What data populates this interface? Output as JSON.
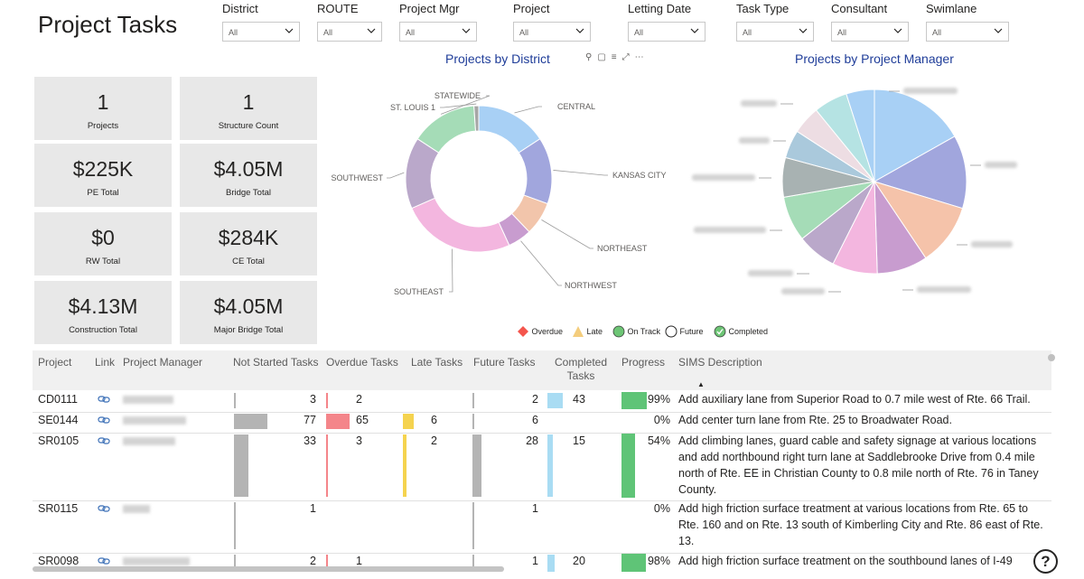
{
  "page": {
    "title": "Project Tasks"
  },
  "filters": [
    {
      "label": "District",
      "value": "All"
    },
    {
      "label": "ROUTE",
      "value": "All"
    },
    {
      "label": "Project Mgr",
      "value": "All"
    },
    {
      "label": "Project",
      "value": "All"
    },
    {
      "label": "Letting Date",
      "value": "All"
    },
    {
      "label": "Task Type",
      "value": "All"
    },
    {
      "label": "Consultant",
      "value": "All"
    },
    {
      "label": "Swimlane",
      "value": "All"
    }
  ],
  "cards": [
    {
      "value": "1",
      "caption": "Projects"
    },
    {
      "value": "1",
      "caption": "Structure Count"
    },
    {
      "value": "$225K",
      "caption": "PE Total"
    },
    {
      "value": "$4.05M",
      "caption": "Bridge Total"
    },
    {
      "value": "$0",
      "caption": "RW Total"
    },
    {
      "value": "$284K",
      "caption": "CE Total"
    },
    {
      "value": "$4.13M",
      "caption": "Construction Total"
    },
    {
      "value": "$4.05M",
      "caption": "Major Bridge Total"
    }
  ],
  "chart_data": [
    {
      "type": "pie",
      "title": "Projects by District",
      "donut": true,
      "categories": [
        "CENTRAL",
        "KANSAS CITY",
        "NORTHEAST",
        "NORTHWEST",
        "SOUTHEAST",
        "SOUTHWEST",
        "STATEWIDE",
        "ST. LOUIS 1"
      ],
      "values": [
        15,
        14,
        7,
        5,
        24,
        15,
        14,
        1
      ],
      "colors": [
        "#a8d0f5",
        "#a1a6dd",
        "#f2c5ab",
        "#c89ccf",
        "#f3b6df",
        "#baa8ca",
        "#a5dcb7",
        "#a6a6a6"
      ]
    },
    {
      "type": "pie",
      "title": "Projects by Project Manager",
      "donut": false,
      "categories": [
        "",
        "",
        "",
        "",
        "",
        "",
        "",
        "",
        "",
        "",
        "",
        ""
      ],
      "values": [
        17,
        13,
        11,
        9,
        8,
        7,
        8,
        7,
        5,
        5,
        6,
        5
      ],
      "colors": [
        "#a8d0f5",
        "#a1a6dd",
        "#f5c3aa",
        "#c89ccf",
        "#f3b6df",
        "#baa8ca",
        "#a5dcb7",
        "#a8b2b2",
        "#aac9dc",
        "#eddde3",
        "#b5e3e3",
        "#a8d0f5"
      ]
    }
  ],
  "legend": [
    {
      "label": "Overdue",
      "shape": "diamond",
      "color": "#f4554d"
    },
    {
      "label": "Late",
      "shape": "triangle",
      "color": "#f4cd7d"
    },
    {
      "label": "On Track",
      "shape": "circle",
      "color": "#6dc575"
    },
    {
      "label": "Future",
      "shape": "circle-outline",
      "color": "#252423"
    },
    {
      "label": "Completed",
      "shape": "check-circle",
      "color": "#6dc575"
    }
  ],
  "table": {
    "headers": {
      "project": "Project",
      "link": "Link",
      "manager": "Project Manager",
      "not_started": "Not Started Tasks",
      "overdue": "Overdue Tasks",
      "late": "Late Tasks",
      "future": "Future Tasks",
      "completed_1": "Completed",
      "completed_2": "Tasks",
      "progress": "Progress",
      "desc": "SIMS Description"
    },
    "sort_indicator": "▲",
    "rows": [
      {
        "project": "CD0111",
        "not_started": "3",
        "overdue": "2",
        "late": "",
        "future": "2",
        "completed": "43",
        "progress": "99%",
        "progress_value": 0.99,
        "desc": "Add auxiliary lane from Superior Road to 0.7 mile west of Rte. 66 Trail."
      },
      {
        "project": "SE0144",
        "not_started": "77",
        "overdue": "65",
        "late": "6",
        "future": "6",
        "completed": "",
        "progress": "0%",
        "progress_value": 0,
        "desc": "Add center turn lane from Rte. 25 to Broadwater Road."
      },
      {
        "project": "SR0105",
        "not_started": "33",
        "overdue": "3",
        "late": "2",
        "future": "28",
        "completed": "15",
        "progress": "54%",
        "progress_value": 0.54,
        "desc": "Add climbing lanes, guard cable and safety signage at various locations and add northbound right turn lane at Saddlebrooke Drive from 0.4 mile north of Rte. EE in Christian County to 0.8 mile north of Rte. 76 in Taney County."
      },
      {
        "project": "SR0115",
        "not_started": "1",
        "overdue": "",
        "late": "",
        "future": "1",
        "completed": "",
        "progress": "0%",
        "progress_value": 0,
        "desc": "Add high friction surface treatment at various locations from Rte. 65 to Rte. 160 and on Rte. 13 south of Kimberling City and Rte. 86 east of Rte. 13."
      },
      {
        "project": "SR0098",
        "not_started": "2",
        "overdue": "1",
        "late": "",
        "future": "1",
        "completed": "20",
        "progress": "98%",
        "progress_value": 0.98,
        "desc": "Add high friction surface treatment on the southbound lanes of I-49"
      }
    ]
  },
  "help_label": "?"
}
